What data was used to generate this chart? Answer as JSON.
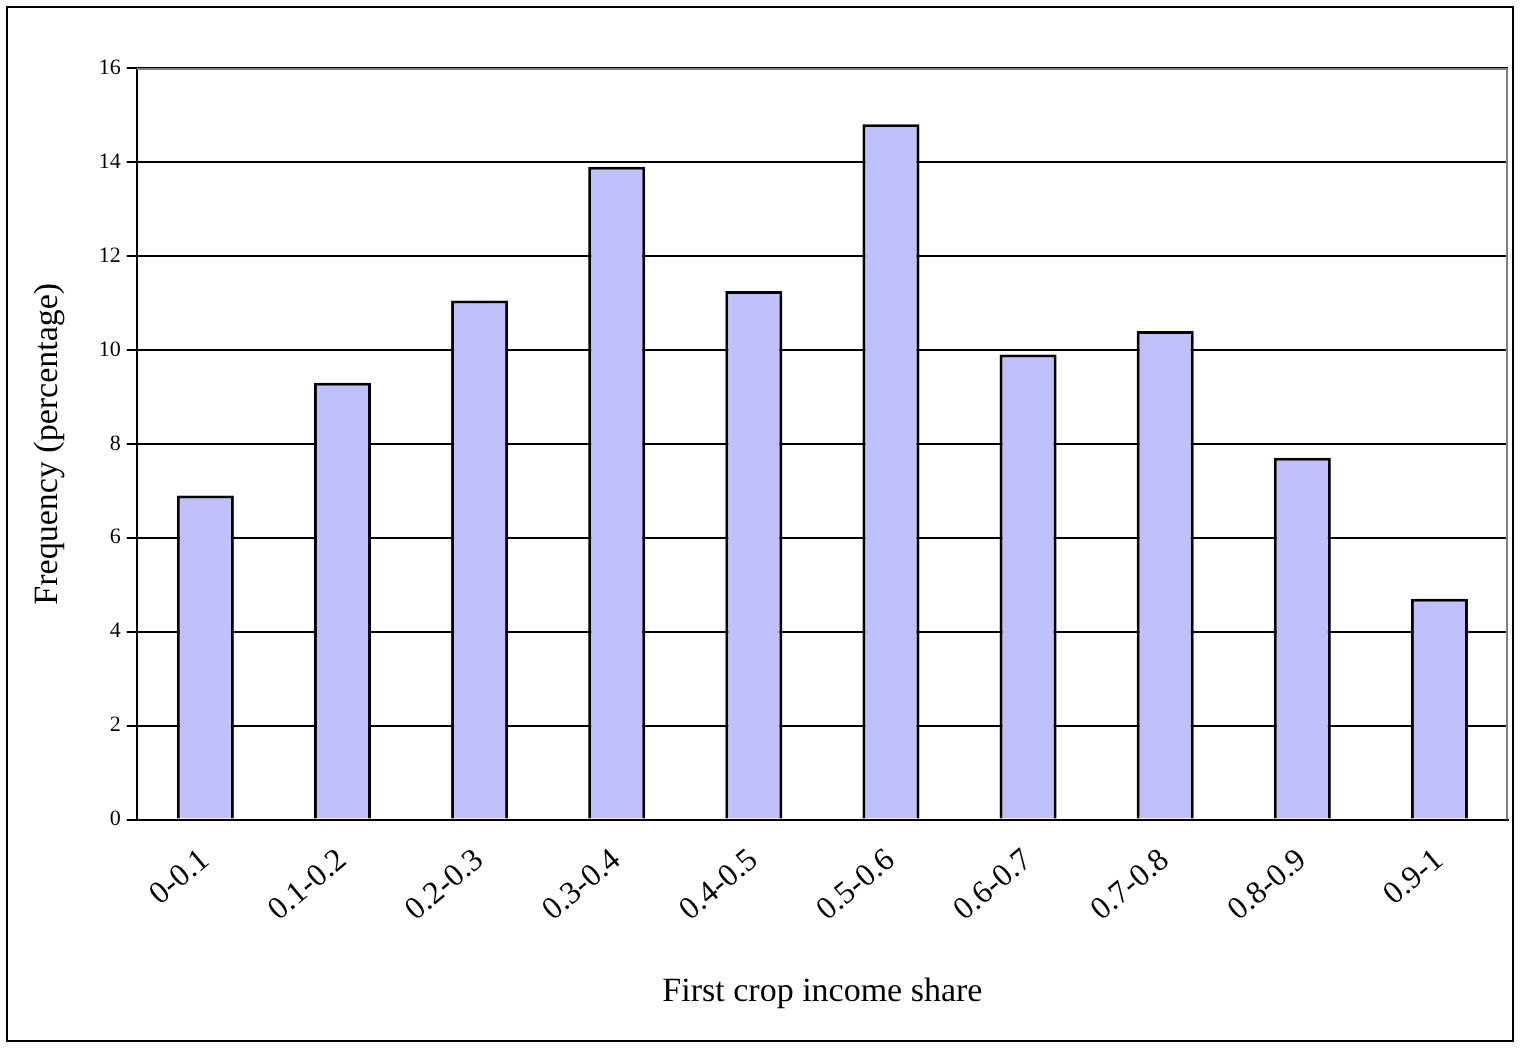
{
  "chart_data": {
    "type": "bar",
    "xlabel": "First crop income share",
    "ylabel": "Frequency (percentage)",
    "categories": [
      "0-0.1",
      "0.1-0.2",
      "0.2-0.3",
      "0.3-0.4",
      "0.4-0.5",
      "0.5-0.6",
      "0.6-0.7",
      "0.7-0.8",
      "0.8-0.9",
      "0.9-1"
    ],
    "values": [
      6.9,
      9.3,
      11.05,
      13.9,
      11.25,
      14.8,
      9.9,
      10.4,
      7.7,
      4.7
    ],
    "color": "#c0c0ff",
    "ylim": [
      0,
      16
    ],
    "yticks": [
      0,
      2,
      4,
      6,
      8,
      10,
      12,
      14,
      16
    ],
    "grid": "y",
    "legend": false
  }
}
